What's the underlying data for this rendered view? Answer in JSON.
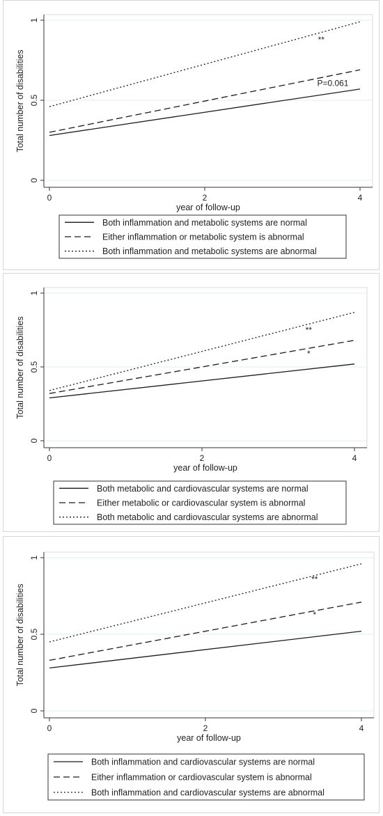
{
  "chart_data": [
    {
      "type": "line",
      "title": "",
      "xlabel": "year of follow-up",
      "ylabel": "Total number of disabilities",
      "xlim": [
        0,
        4
      ],
      "ylim": [
        0,
        1
      ],
      "xticks": [
        "0",
        "2",
        "4"
      ],
      "yticks": [
        "0",
        "0.5",
        "1"
      ],
      "grid": true,
      "legend_position": "bottom",
      "series": [
        {
          "name": "Both inflammation and metabolic systems are normal",
          "style": "solid",
          "x": [
            0,
            4
          ],
          "y": [
            0.28,
            0.57
          ]
        },
        {
          "name": "Either inflammation or metabolic system is abnormal",
          "style": "dashed",
          "x": [
            0,
            4
          ],
          "y": [
            0.3,
            0.69
          ]
        },
        {
          "name": "Both inflammation and metabolic systems are abnormal",
          "style": "dotted",
          "x": [
            0,
            4
          ],
          "y": [
            0.46,
            0.99
          ]
        }
      ],
      "annotations": [
        {
          "text": "**",
          "x": 3.5,
          "y": 0.86
        },
        {
          "text": "P=0.061",
          "x": 3.65,
          "y": 0.59
        }
      ]
    },
    {
      "type": "line",
      "title": "",
      "xlabel": "year of follow-up",
      "ylabel": "Total number of disabilities",
      "xlim": [
        0,
        4
      ],
      "ylim": [
        0,
        1
      ],
      "xticks": [
        "0",
        "2",
        "4"
      ],
      "yticks": [
        "0",
        "0.5",
        "1"
      ],
      "grid": true,
      "legend_position": "bottom",
      "series": [
        {
          "name": "Both metabolic and cardiovascular systems are normal",
          "style": "solid",
          "x": [
            0,
            4
          ],
          "y": [
            0.29,
            0.52
          ]
        },
        {
          "name": "Either metabolic or cardiovascular system is abnormal",
          "style": "dashed",
          "x": [
            0,
            4
          ],
          "y": [
            0.32,
            0.68
          ]
        },
        {
          "name": "Both metabolic and cardiovascular systems are abnormal",
          "style": "dotted",
          "x": [
            0,
            4
          ],
          "y": [
            0.34,
            0.87
          ]
        }
      ],
      "annotations": [
        {
          "text": "**",
          "x": 3.4,
          "y": 0.73
        },
        {
          "text": "*",
          "x": 3.4,
          "y": 0.57
        }
      ]
    },
    {
      "type": "line",
      "title": "",
      "xlabel": "year of follow-up",
      "ylabel": "Total number of disabilities",
      "xlim": [
        0,
        4
      ],
      "ylim": [
        0,
        1
      ],
      "xticks": [
        "0",
        "2",
        "4"
      ],
      "yticks": [
        "0",
        "0.5",
        "1"
      ],
      "grid": true,
      "legend_position": "bottom",
      "series": [
        {
          "name": "Both inflammation and cardiovascular systems are normal",
          "style": "solid",
          "x": [
            0,
            4
          ],
          "y": [
            0.28,
            0.52
          ]
        },
        {
          "name": "Either inflammation or cardiovascular system is abnormal",
          "style": "dashed",
          "x": [
            0,
            4
          ],
          "y": [
            0.33,
            0.71
          ]
        },
        {
          "name": "Both inflammation and cardiovascular systems are abnormal",
          "style": "dotted",
          "x": [
            0,
            4
          ],
          "y": [
            0.45,
            0.96
          ]
        }
      ],
      "annotations": [
        {
          "text": "**",
          "x": 3.4,
          "y": 0.84
        },
        {
          "text": "*",
          "x": 3.4,
          "y": 0.61
        }
      ]
    }
  ]
}
